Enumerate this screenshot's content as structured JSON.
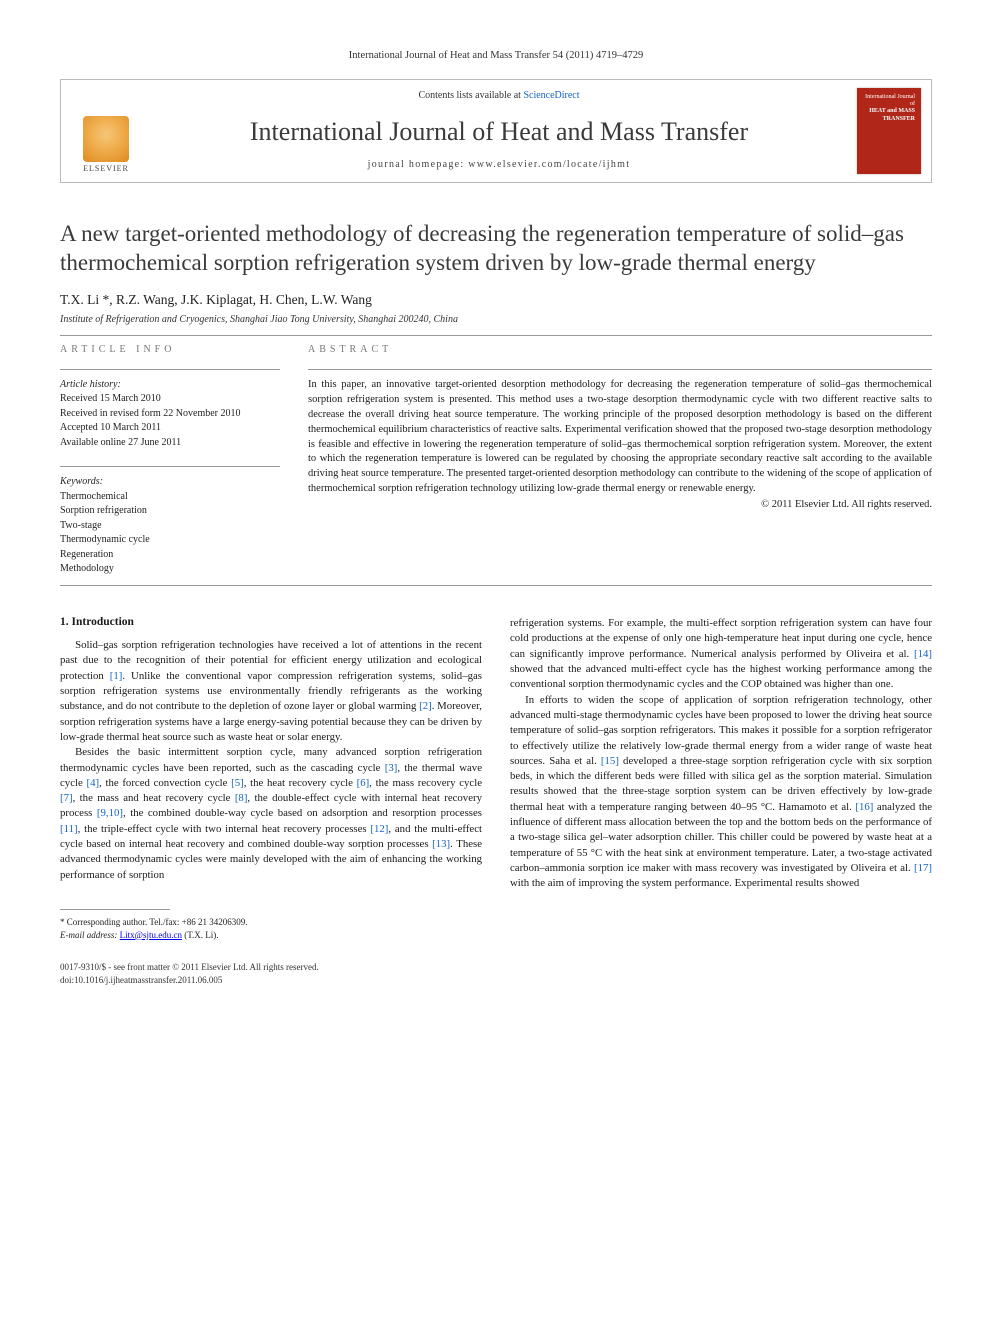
{
  "running_head": "International Journal of Heat and Mass Transfer 54 (2011) 4719–4729",
  "header": {
    "contents_prefix": "Contents lists available at ",
    "contents_link": "ScienceDirect",
    "journal": "International Journal of Heat and Mass Transfer",
    "homepage_prefix": "journal homepage: ",
    "homepage_url": "www.elsevier.com/locate/ijhmt",
    "publisher_label": "ELSEVIER",
    "cover_line1": "International Journal of",
    "cover_line2": "HEAT and MASS",
    "cover_line3": "TRANSFER"
  },
  "article": {
    "title": "A new target-oriented methodology of decreasing the regeneration temperature of solid–gas thermochemical sorption refrigeration system driven by low-grade thermal energy",
    "authors": "T.X. Li *, R.Z. Wang, J.K. Kiplagat, H. Chen, L.W. Wang",
    "affiliation": "Institute of Refrigeration and Cryogenics, Shanghai Jiao Tong University, Shanghai 200240, China"
  },
  "info": {
    "label": "ARTICLE INFO",
    "history_label": "Article history:",
    "received": "Received 15 March 2010",
    "revised": "Received in revised form 22 November 2010",
    "accepted": "Accepted 10 March 2011",
    "online": "Available online 27 June 2011",
    "keywords_label": "Keywords:",
    "keywords": [
      "Thermochemical",
      "Sorption refrigeration",
      "Two-stage",
      "Thermodynamic cycle",
      "Regeneration",
      "Methodology"
    ]
  },
  "abstract": {
    "label": "ABSTRACT",
    "text": "In this paper, an innovative target-oriented desorption methodology for decreasing the regeneration temperature of solid–gas thermochemical sorption refrigeration system is presented. This method uses a two-stage desorption thermodynamic cycle with two different reactive salts to decrease the overall driving heat source temperature. The working principle of the proposed desorption methodology is based on the different thermochemical equilibrium characteristics of reactive salts. Experimental verification showed that the proposed two-stage desorption methodology is feasible and effective in lowering the regeneration temperature of solid–gas thermochemical sorption refrigeration system. Moreover, the extent to which the regeneration temperature is lowered can be regulated by choosing the appropriate secondary reactive salt according to the available driving heat source temperature. The presented target-oriented desorption methodology can contribute to the widening of the scope of application of thermochemical sorption refrigeration technology utilizing low-grade thermal energy or renewable energy.",
    "copyright": "© 2011 Elsevier Ltd. All rights reserved."
  },
  "body": {
    "intro_heading": "1. Introduction",
    "p1a": "Solid–gas sorption refrigeration technologies have received a lot of attentions in the recent past due to the recognition of their potential for efficient energy utilization and ecological protection ",
    "p1_ref1": "[1]",
    "p1b": ". Unlike the conventional vapor compression refrigeration systems, solid–gas sorption refrigeration systems use environmentally friendly refrigerants as the working substance, and do not contribute to the depletion of ozone layer or global warming ",
    "p1_ref2": "[2]",
    "p1c": ". Moreover, sorption refrigeration systems have a large energy-saving potential because they can be driven by low-grade thermal heat source such as waste heat or solar energy.",
    "p2a": "Besides the basic intermittent sorption cycle, many advanced sorption refrigeration thermodynamic cycles have been reported, such as the cascading cycle ",
    "p2_ref3": "[3]",
    "p2b": ", the thermal wave cycle ",
    "p2_ref4": "[4]",
    "p2c": ", the forced convection cycle ",
    "p2_ref5": "[5]",
    "p2d": ", the heat recovery cycle ",
    "p2_ref6": "[6]",
    "p2e": ", the mass recovery cycle ",
    "p2_ref7": "[7]",
    "p2f": ", the mass and heat recovery cycle ",
    "p2_ref8": "[8]",
    "p2g": ", the double-effect cycle with internal heat recovery process ",
    "p2_ref910": "[9,10]",
    "p2h": ", the combined double-way cycle based on adsorption and resorption processes ",
    "p2_ref11": "[11]",
    "p2i": ", the triple-effect cycle with two internal heat recovery processes ",
    "p2_ref12": "[12]",
    "p2j": ", and the multi-effect cycle based on internal heat recovery and combined double-way sorption processes ",
    "p2_ref13": "[13]",
    "p2k": ". These advanced thermodynamic cycles were mainly developed with the aim of enhancing the working performance of sorption ",
    "p3a": "refrigeration systems. For example, the multi-effect sorption refrigeration system can have four cold productions at the expense of only one high-temperature heat input during one cycle, hence can significantly improve performance. Numerical analysis performed by Oliveira et al. ",
    "p3_ref14": "[14]",
    "p3b": " showed that the advanced multi-effect cycle has the highest working performance among the conventional sorption thermodynamic cycles and the COP obtained was higher than one.",
    "p4a": "In efforts to widen the scope of application of sorption refrigeration technology, other advanced multi-stage thermodynamic cycles have been proposed to lower the driving heat source temperature of solid–gas sorption refrigerators. This makes it possible for a sorption refrigerator to effectively utilize the relatively low-grade thermal energy from a wider range of waste heat sources. Saha et al. ",
    "p4_ref15": "[15]",
    "p4b": " developed a three-stage sorption refrigeration cycle with six sorption beds, in which the different beds were filled with silica gel as the sorption material. Simulation results showed that the three-stage sorption system can be driven effectively by low-grade thermal heat with a temperature ranging between 40–95 °C. Hamamoto et al. ",
    "p4_ref16": "[16]",
    "p4c": " analyzed the influence of different mass allocation between the top and the bottom beds on the performance of a two-stage silica gel–water adsorption chiller. This chiller could be powered by waste heat at a temperature of 55 °C with the heat sink at environment temperature. Later, a two-stage activated carbon–ammonia sorption ice maker with mass recovery was investigated by Oliveira et al. ",
    "p4_ref17": "[17]",
    "p4d": " with the aim of improving the system performance. Experimental results showed"
  },
  "footnote": {
    "corr": "* Corresponding author. Tel./fax: +86 21 34206309.",
    "email_label": "E-mail address:",
    "email": "Litx@sjtu.edu.cn",
    "email_who": " (T.X. Li)."
  },
  "bottom": {
    "line1": "0017-9310/$ - see front matter © 2011 Elsevier Ltd. All rights reserved.",
    "line2": "doi:10.1016/j.ijheatmasstransfer.2011.06.005"
  },
  "colors": {
    "link": "#1565c0",
    "cover_bg": "#b0271a",
    "tree_grad_a": "#f5c67a",
    "tree_grad_b": "#e08a20"
  }
}
